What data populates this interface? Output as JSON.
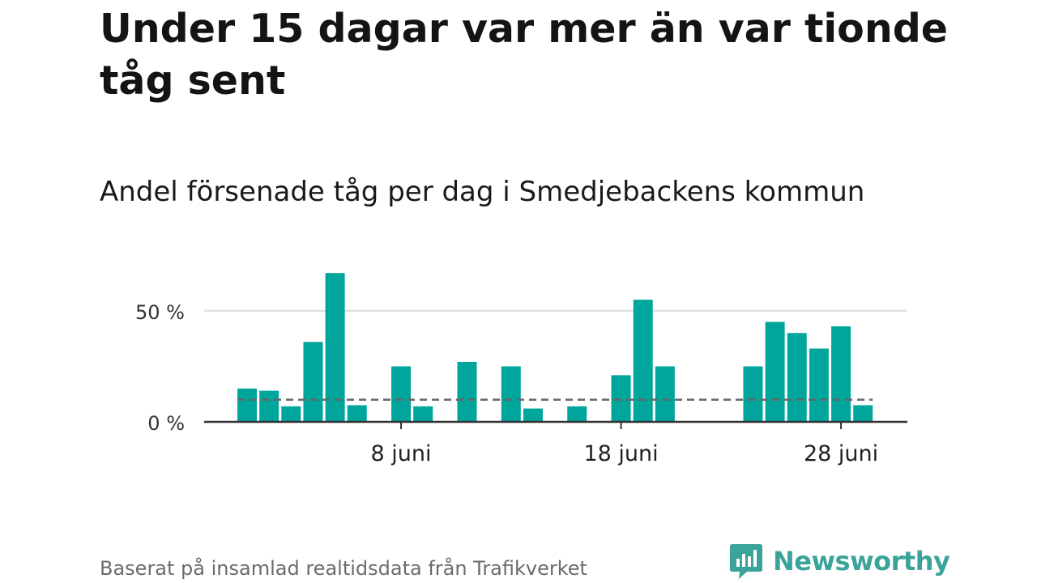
{
  "title": "Under 15 dagar var mer än var tionde tåg sent",
  "subtitle": "Andel försenade tåg per dag i Smedjebackens kommun",
  "footer": {
    "source": "Baserat på insamlad realtidsdata från Trafikverket",
    "brand": "Newsworthy"
  },
  "colors": {
    "bar": "#00A69C",
    "reference_line": "#666666",
    "grid": "#dddddd",
    "axis": "#333333",
    "brand": "#3aa39a"
  },
  "icons": {
    "brand_logo": "newsworthy-logo-icon"
  },
  "chart_data": {
    "type": "bar",
    "x_unit": "date",
    "x": [
      "1 juni",
      "2 juni",
      "3 juni",
      "4 juni",
      "5 juni",
      "6 juni",
      "7 juni",
      "8 juni",
      "9 juni",
      "10 juni",
      "11 juni",
      "12 juni",
      "13 juni",
      "14 juni",
      "15 juni",
      "16 juni",
      "17 juni",
      "18 juni",
      "19 juni",
      "20 juni",
      "21 juni",
      "22 juni",
      "23 juni",
      "24 juni",
      "25 juni",
      "26 juni",
      "27 juni",
      "28 juni",
      "29 juni"
    ],
    "values": [
      15,
      14,
      7,
      36,
      67,
      7.5,
      null,
      25,
      7,
      null,
      27,
      null,
      25,
      6,
      null,
      7,
      null,
      21,
      55,
      25,
      null,
      null,
      null,
      25,
      45,
      40,
      33,
      43,
      7.5
    ],
    "reference_value": 10,
    "ylim": [
      0,
      70
    ],
    "y_ticks": [
      {
        "value": 0,
        "label": "0 %"
      },
      {
        "value": 50,
        "label": "50 %"
      }
    ],
    "x_ticks": [
      {
        "x": "8 juni",
        "label": "8 juni"
      },
      {
        "x": "18 juni",
        "label": "18 juni"
      },
      {
        "x": "28 juni",
        "label": "28 juni"
      }
    ],
    "grid": true
  }
}
